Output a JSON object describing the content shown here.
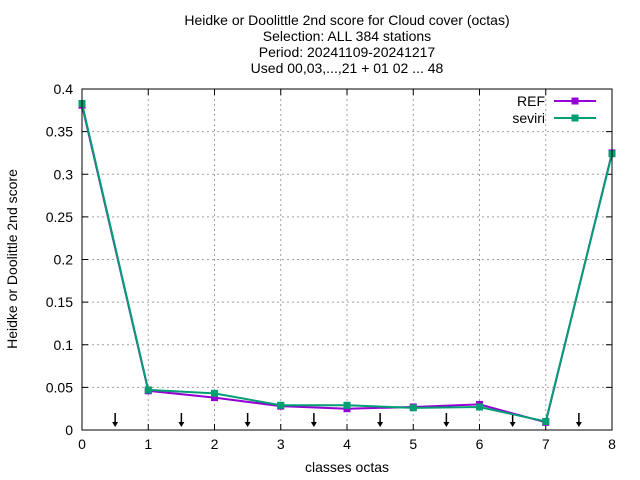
{
  "chart_data": {
    "type": "line",
    "title_lines": [
      "Heidke or Doolittle 2nd score  for Cloud cover (octas)",
      "Selection: ALL    384 stations",
      "Period: 20241109-20241217",
      "Used 00,03,...,21 + 01 02 ... 48"
    ],
    "xlabel": "classes octas",
    "ylabel": "Heidke or Doolittle 2nd score",
    "xlim": [
      0,
      8
    ],
    "ylim": [
      0,
      0.4
    ],
    "x_ticks": [
      0,
      1,
      2,
      3,
      4,
      5,
      6,
      7,
      8
    ],
    "x_tick_labels": [
      "0",
      "1",
      "2",
      "3",
      "4",
      "5",
      "6",
      "7",
      "8"
    ],
    "y_ticks": [
      0,
      0.05,
      0.1,
      0.15,
      0.2,
      0.25,
      0.3,
      0.35,
      0.4
    ],
    "y_tick_labels": [
      "0",
      "0.05",
      "0.1",
      "0.15",
      "0.2",
      "0.25",
      "0.3",
      "0.35",
      "0.4"
    ],
    "grid": true,
    "legend_position": "top-right",
    "x": [
      0,
      1,
      2,
      3,
      4,
      5,
      6,
      7,
      8
    ],
    "series": [
      {
        "name": "REF",
        "color": "#9400d3",
        "values": [
          0.381,
          0.046,
          0.038,
          0.028,
          0.025,
          0.027,
          0.03,
          0.009,
          0.325
        ]
      },
      {
        "name": "seviri",
        "color": "#009e73",
        "values": [
          0.383,
          0.047,
          0.043,
          0.029,
          0.029,
          0.026,
          0.027,
          0.01,
          0.324
        ]
      }
    ],
    "arrow_markers_x": [
      0.5,
      1.5,
      2.5,
      3.5,
      4.5,
      5.5,
      6.5,
      7.5
    ]
  }
}
